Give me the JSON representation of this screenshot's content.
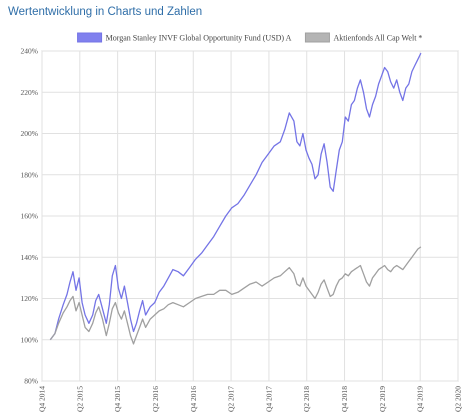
{
  "page": {
    "title": "Wertentwicklung in Charts und Zahlen"
  },
  "chart_data": {
    "type": "line",
    "title": "",
    "xlabel": "",
    "ylabel": "",
    "y_tick_labels": [
      "80%",
      "100%",
      "120%",
      "140%",
      "160%",
      "180%",
      "200%",
      "220%",
      "240%"
    ],
    "y_ticks": [
      80,
      100,
      120,
      140,
      160,
      180,
      200,
      220,
      240
    ],
    "ylim": [
      80,
      240
    ],
    "x_tick_labels": [
      "Q4 2014",
      "Q2 2015",
      "Q4 2015",
      "Q2 2016",
      "Q4 2016",
      "Q2 2017",
      "Q4 2017",
      "Q2 2018",
      "Q4 2018",
      "Q2 2019",
      "Q4 2019",
      "Q2 2020"
    ],
    "xlim": [
      2014.75,
      2020.25
    ],
    "grid": true,
    "legend_position": "top",
    "series": [
      {
        "name": "Morgan Stanley INVF Global Opportunity Fund (USD) A",
        "color": "#7474e6",
        "fill": "#8080ee",
        "x": [
          2014.86,
          2014.92,
          2014.97,
          2015.03,
          2015.08,
          2015.12,
          2015.16,
          2015.2,
          2015.24,
          2015.28,
          2015.32,
          2015.37,
          2015.42,
          2015.46,
          2015.5,
          2015.55,
          2015.6,
          2015.64,
          2015.68,
          2015.72,
          2015.76,
          2015.8,
          2015.84,
          2015.88,
          2015.92,
          2015.96,
          2016.0,
          2016.04,
          2016.08,
          2016.12,
          2016.18,
          2016.24,
          2016.3,
          2016.36,
          2016.42,
          2016.48,
          2016.55,
          2016.62,
          2016.7,
          2016.78,
          2016.86,
          2016.94,
          2017.02,
          2017.1,
          2017.18,
          2017.26,
          2017.34,
          2017.42,
          2017.5,
          2017.58,
          2017.66,
          2017.74,
          2017.82,
          2017.9,
          2017.96,
          2018.02,
          2018.08,
          2018.12,
          2018.16,
          2018.2,
          2018.24,
          2018.28,
          2018.32,
          2018.36,
          2018.4,
          2018.44,
          2018.48,
          2018.52,
          2018.56,
          2018.6,
          2018.64,
          2018.68,
          2018.72,
          2018.76,
          2018.8,
          2018.84,
          2018.88,
          2018.92,
          2018.96,
          2019.0,
          2019.04,
          2019.08,
          2019.12,
          2019.16,
          2019.2,
          2019.24,
          2019.28,
          2019.32,
          2019.36,
          2019.4,
          2019.44,
          2019.48,
          2019.52,
          2019.56,
          2019.6,
          2019.64,
          2019.68,
          2019.72,
          2019.76
        ],
        "y": [
          100,
          103,
          110,
          117,
          122,
          128,
          133,
          124,
          130,
          118,
          112,
          108,
          112,
          119,
          122,
          115,
          108,
          117,
          131,
          136,
          125,
          120,
          126,
          118,
          110,
          104,
          108,
          114,
          119,
          112,
          116,
          118,
          123,
          126,
          130,
          134,
          133,
          131,
          135,
          139,
          142,
          146,
          150,
          155,
          160,
          164,
          166,
          170,
          175,
          180,
          186,
          190,
          194,
          196,
          202,
          210,
          206,
          196,
          194,
          200,
          192,
          188,
          185,
          178,
          180,
          190,
          195,
          186,
          174,
          172,
          182,
          192,
          196,
          208,
          206,
          214,
          216,
          222,
          226,
          220,
          212,
          208,
          214,
          218,
          224,
          228,
          232,
          230,
          225,
          222,
          226,
          220,
          216,
          222,
          224,
          230,
          233,
          236,
          239
        ]
      },
      {
        "name": "Aktienfonds All Cap Welt *",
        "color": "#a0a0a0",
        "fill": "#b4b4b4",
        "x": [
          2014.86,
          2014.92,
          2014.97,
          2015.03,
          2015.08,
          2015.12,
          2015.16,
          2015.2,
          2015.24,
          2015.28,
          2015.32,
          2015.37,
          2015.42,
          2015.46,
          2015.5,
          2015.55,
          2015.6,
          2015.64,
          2015.68,
          2015.72,
          2015.76,
          2015.8,
          2015.84,
          2015.88,
          2015.92,
          2015.96,
          2016.0,
          2016.04,
          2016.08,
          2016.12,
          2016.18,
          2016.24,
          2016.3,
          2016.36,
          2016.42,
          2016.48,
          2016.55,
          2016.62,
          2016.7,
          2016.78,
          2016.86,
          2016.94,
          2017.02,
          2017.1,
          2017.18,
          2017.26,
          2017.34,
          2017.42,
          2017.5,
          2017.58,
          2017.66,
          2017.74,
          2017.82,
          2017.9,
          2017.96,
          2018.02,
          2018.08,
          2018.12,
          2018.16,
          2018.2,
          2018.24,
          2018.28,
          2018.32,
          2018.36,
          2018.4,
          2018.44,
          2018.48,
          2018.52,
          2018.56,
          2018.6,
          2018.64,
          2018.68,
          2018.72,
          2018.76,
          2018.8,
          2018.84,
          2018.88,
          2018.92,
          2018.96,
          2019.0,
          2019.04,
          2019.08,
          2019.12,
          2019.16,
          2019.2,
          2019.24,
          2019.28,
          2019.32,
          2019.36,
          2019.4,
          2019.44,
          2019.48,
          2019.52,
          2019.56,
          2019.6,
          2019.64,
          2019.68,
          2019.72,
          2019.76
        ],
        "y": [
          100,
          103,
          108,
          113,
          116,
          119,
          121,
          114,
          118,
          112,
          106,
          104,
          108,
          113,
          116,
          110,
          102,
          108,
          115,
          118,
          113,
          110,
          114,
          108,
          102,
          98,
          102,
          106,
          110,
          106,
          110,
          112,
          114,
          115,
          117,
          118,
          117,
          116,
          118,
          120,
          121,
          122,
          122,
          124,
          124,
          122,
          123,
          125,
          127,
          128,
          126,
          128,
          130,
          131,
          133,
          135,
          132,
          127,
          126,
          130,
          126,
          124,
          122,
          120,
          123,
          127,
          129,
          125,
          121,
          122,
          126,
          129,
          130,
          132,
          131,
          133,
          134,
          135,
          136,
          132,
          128,
          126,
          130,
          132,
          134,
          135,
          136,
          134,
          133,
          135,
          136,
          135,
          134,
          136,
          138,
          140,
          142,
          144,
          145
        ]
      }
    ]
  }
}
